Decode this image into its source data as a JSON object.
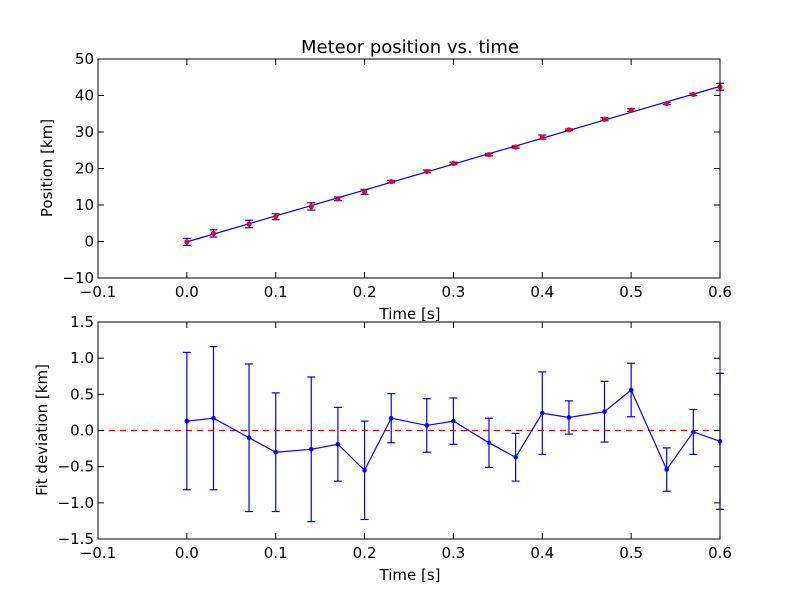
{
  "chart_data": [
    {
      "type": "scatter",
      "title": "Meteor position vs. time",
      "xlabel": "Time [s]",
      "ylabel": "Position [km]",
      "xlim": [
        -0.1,
        0.6
      ],
      "ylim": [
        -10,
        50
      ],
      "xticks": [
        "−0.1",
        "0.0",
        "0.1",
        "0.2",
        "0.3",
        "0.4",
        "0.5",
        "0.6"
      ],
      "xtick_values": [
        -0.1,
        0.0,
        0.1,
        0.2,
        0.3,
        0.4,
        0.5,
        0.6
      ],
      "yticks": [
        "−10",
        "0",
        "10",
        "20",
        "30",
        "40",
        "50"
      ],
      "ytick_values": [
        -10,
        0,
        10,
        20,
        30,
        40,
        50
      ],
      "grid": false,
      "colors": {
        "points": "#ff0000",
        "errorbars": "#0000ff",
        "fit": "#0000ff"
      },
      "fit_line": {
        "x": [
          0.0,
          0.6
        ],
        "y": [
          -0.1,
          42.5
        ]
      },
      "series": [
        {
          "x": [
            0.0,
            0.03,
            0.07,
            0.1,
            0.14,
            0.17,
            0.2,
            0.23,
            0.27,
            0.3,
            0.34,
            0.37,
            0.4,
            0.43,
            0.47,
            0.5,
            0.54,
            0.57,
            0.6
          ],
          "y": [
            -0.1,
            2.2,
            4.8,
            6.8,
            9.6,
            11.7,
            13.6,
            16.4,
            19.2,
            21.4,
            23.8,
            25.9,
            28.6,
            30.6,
            33.5,
            36.0,
            37.8,
            40.3,
            42.4
          ],
          "err": [
            0.95,
            0.99,
            1.02,
            0.82,
            1.0,
            0.51,
            0.68,
            0.34,
            0.37,
            0.32,
            0.34,
            0.33,
            0.57,
            0.23,
            0.42,
            0.37,
            0.3,
            0.31,
            0.94
          ]
        }
      ]
    },
    {
      "type": "line",
      "xlabel": "Time [s]",
      "ylabel": "Fit deviation [km]",
      "xlim": [
        -0.1,
        0.6
      ],
      "ylim": [
        -1.5,
        1.5
      ],
      "xticks": [
        "−0.1",
        "0.0",
        "0.1",
        "0.2",
        "0.3",
        "0.4",
        "0.5",
        "0.6"
      ],
      "xtick_values": [
        -0.1,
        0.0,
        0.1,
        0.2,
        0.3,
        0.4,
        0.5,
        0.6
      ],
      "yticks": [
        "−1.5",
        "−1.0",
        "−0.5",
        "0.0",
        "0.5",
        "1.0",
        "1.5"
      ],
      "ytick_values": [
        -1.5,
        -1.0,
        -0.5,
        0.0,
        0.5,
        1.0,
        1.5
      ],
      "grid": false,
      "reference_line": {
        "y": 0.0,
        "style": "dashed",
        "color": "#ff0000"
      },
      "colors": {
        "line": "#0000ff",
        "errorbars": "#0000ff"
      },
      "series": [
        {
          "x": [
            0.0,
            0.03,
            0.07,
            0.1,
            0.14,
            0.17,
            0.2,
            0.23,
            0.27,
            0.3,
            0.34,
            0.37,
            0.4,
            0.43,
            0.47,
            0.5,
            0.54,
            0.57,
            0.6
          ],
          "y": [
            0.13,
            0.17,
            -0.1,
            -0.3,
            -0.26,
            -0.19,
            -0.55,
            0.17,
            0.07,
            0.13,
            -0.17,
            -0.37,
            0.24,
            0.18,
            0.26,
            0.56,
            -0.54,
            -0.02,
            -0.15
          ],
          "err": [
            0.95,
            0.99,
            1.02,
            0.82,
            1.0,
            0.51,
            0.68,
            0.34,
            0.37,
            0.32,
            0.34,
            0.33,
            0.57,
            0.23,
            0.42,
            0.37,
            0.3,
            0.31,
            0.94
          ]
        }
      ]
    }
  ]
}
